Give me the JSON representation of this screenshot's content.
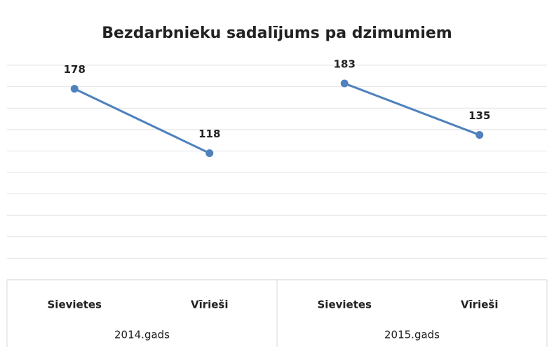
{
  "chart_data": {
    "type": "line",
    "title": "Bezdarbnieku sadalījums pa dzimumiem",
    "groups": [
      "2014.gads",
      "2015.gads"
    ],
    "categories": [
      [
        "Sievietes",
        "Vīrieši"
      ],
      [
        "Sievietes",
        "Vīrieši"
      ]
    ],
    "values": [
      [
        178,
        118
      ],
      [
        183,
        135
      ]
    ],
    "color": "#4f81bd",
    "ylim": [
      0,
      200
    ],
    "yticks": [
      0,
      20,
      40,
      60,
      80,
      100,
      120,
      140,
      160,
      180,
      200
    ],
    "grid": true
  }
}
